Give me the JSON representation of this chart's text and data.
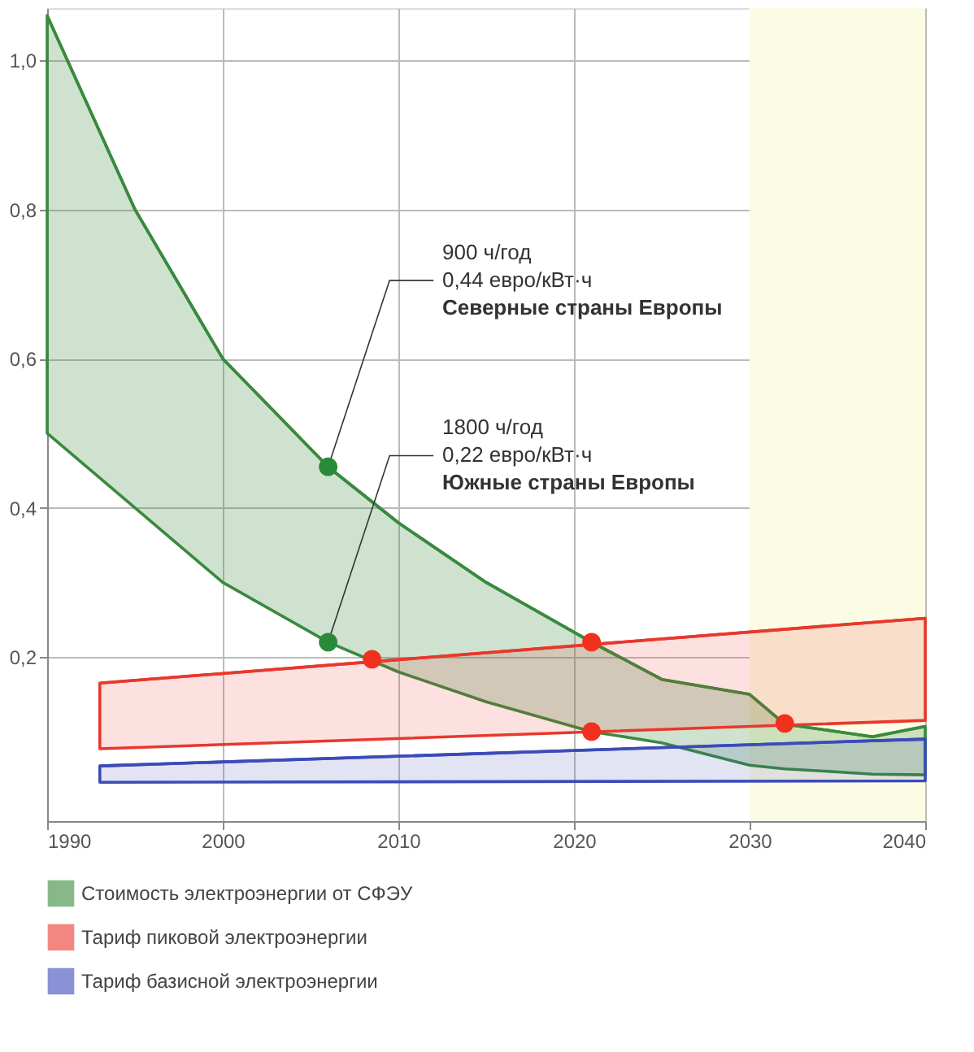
{
  "chart_data": {
    "type": "line",
    "xlim": [
      1990,
      2040
    ],
    "ylim": [
      -0.02,
      1.07
    ],
    "xticks": [
      1990,
      2000,
      2010,
      2020,
      2030,
      2040
    ],
    "yticks": [
      {
        "value": 0.2,
        "label": "0,2"
      },
      {
        "value": 0.4,
        "label": "0,4"
      },
      {
        "value": 0.6,
        "label": "0,6"
      },
      {
        "value": 0.8,
        "label": "0,8"
      },
      {
        "value": 1.0,
        "label": "1,0"
      }
    ],
    "grid": true,
    "legend": "bottom",
    "series": [
      {
        "name": "Стоимость электроэнергии от СФЭУ",
        "color": "#3a8a3e",
        "x": [
          1990,
          1995,
          2000,
          2006,
          2010,
          2015,
          2021,
          2025,
          2030,
          2032,
          2035,
          2037,
          2040
        ],
        "values": [
          1.06,
          0.8,
          0.6,
          0.455,
          0.38,
          0.3,
          0.22,
          0.17,
          0.15,
          0.11,
          0.1,
          0.093,
          0.107
        ],
        "upper": [
          1.06,
          0.8,
          0.6,
          0.455,
          0.38,
          0.3,
          0.22,
          0.17,
          0.15,
          0.11,
          0.1,
          0.093,
          0.107
        ],
        "lower": [
          0.5,
          0.4,
          0.3,
          0.22,
          0.18,
          0.14,
          0.1,
          0.085,
          0.055,
          0.05,
          0.046,
          0.043,
          0.042
        ]
      },
      {
        "name": "Тариф пиковой электроэнергии",
        "color": "#e8382c",
        "x": [
          1993,
          2040
        ],
        "values": [
          0.165,
          0.252
        ],
        "upper": [
          0.165,
          0.252
        ],
        "lower": [
          0.077,
          0.115
        ]
      },
      {
        "name": "Тариф базисной электроэнергии",
        "color": "#3b4bb8",
        "x": [
          1993,
          2040
        ],
        "values": [
          0.054,
          0.09
        ],
        "upper": [
          0.054,
          0.09
        ],
        "lower": [
          0.032,
          0.034
        ]
      },
      {
        "type": "scatter",
        "color": "#2a8a3a",
        "x": [
          2006,
          2006
        ],
        "values": [
          0.455,
          0.22
        ]
      },
      {
        "type": "scatter",
        "color": "#f2301e",
        "x": [
          2008.5,
          2021,
          2021,
          2032
        ],
        "values": [
          0.197,
          0.22,
          0.1,
          0.111
        ]
      }
    ],
    "bands": [
      {
        "axis": "x",
        "from": 2030,
        "to": 2040,
        "color": "#fcfce4"
      }
    ],
    "annotations": [
      {
        "text": "900 ч/год\n0,44 евро/кВт·ч\nСеверные страны Европы",
        "x": 2006,
        "y": 0.455
      },
      {
        "text": "1800 ч/год\n0,22 евро/кВт·ч\nЮжные страны Европы",
        "x": 2006,
        "y": 0.22
      }
    ]
  }
}
